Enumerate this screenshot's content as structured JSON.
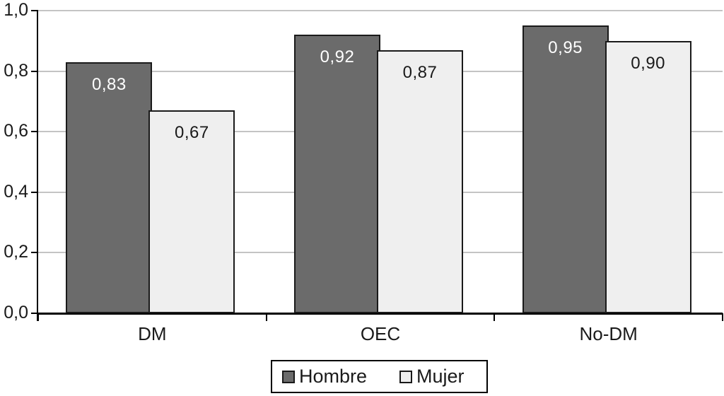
{
  "chart_data": {
    "type": "bar",
    "title": "",
    "categories": [
      "DM",
      "OEC",
      "No-DM"
    ],
    "series": [
      {
        "name": "Hombre",
        "color": "#6b6b6b",
        "label_color": "#ffffff",
        "values": [
          0.83,
          0.92,
          0.95
        ],
        "value_labels": [
          "0,83",
          "0,92",
          "0,95"
        ]
      },
      {
        "name": "Mujer",
        "color": "#efefef",
        "label_color": "#1a1a1a",
        "values": [
          0.67,
          0.87,
          0.9
        ],
        "value_labels": [
          "0,67",
          "0,87",
          "0,90"
        ]
      }
    ],
    "y_axis": {
      "min": 0.0,
      "max": 1.0,
      "tick_interval": 0.2,
      "tick_labels": [
        "0,0",
        "0,2",
        "0,4",
        "0,6",
        "0,8",
        "1,0"
      ]
    },
    "xlabel": "",
    "ylabel": "",
    "grid": true,
    "gridline_color": "#c4c4c4",
    "axis_color": "#000000",
    "bar_border_color": "#1a1a1a",
    "legend": {
      "position": "bottom",
      "entries": [
        "Hombre",
        "Mujer"
      ]
    }
  }
}
